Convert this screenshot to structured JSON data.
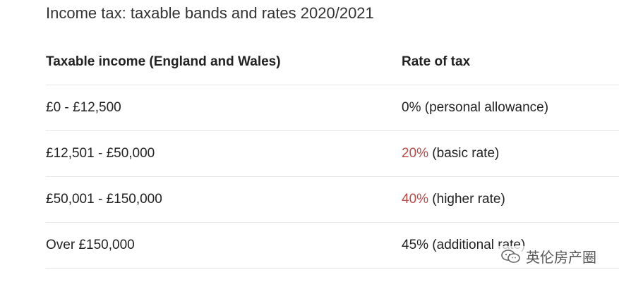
{
  "title": "Income tax: taxable bands and rates 2020/2021",
  "table": {
    "headers": {
      "income": "Taxable income (England and Wales)",
      "rate": "Rate of tax"
    },
    "rows": [
      {
        "income": "£0 - £12,500",
        "rate_pct": "0%",
        "rate_desc": " (personal allowance)",
        "highlight": false
      },
      {
        "income": "£12,501 - £50,000",
        "rate_pct": "20%",
        "rate_desc": " (basic rate)",
        "highlight": true
      },
      {
        "income": "£50,001 - £150,000",
        "rate_pct": "40%",
        "rate_desc": " (higher rate)",
        "highlight": true
      },
      {
        "income": "Over £150,000",
        "rate_pct": "45%",
        "rate_desc": " (additional rate)",
        "highlight": false
      }
    ]
  },
  "watermark": {
    "text": "英伦房产圈",
    "icon": "wechat-icon"
  },
  "colors": {
    "highlight_rate": "#b94a48",
    "divider": "#e6e6e6"
  }
}
